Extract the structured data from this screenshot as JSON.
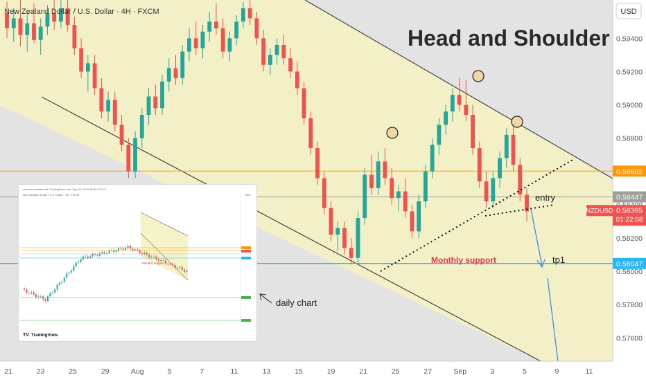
{
  "header": {
    "symbol_title": "New Zealand Dollar / U.S. Dollar · 4H · FXCM",
    "currency": "USD"
  },
  "annotations": {
    "pattern_title": "Head and Shoulder",
    "entry": "entry",
    "tp1": "tp1",
    "monthly_support": "Monthly support",
    "daily_chart": "daily chart"
  },
  "price_labels": {
    "orange_level": "0.58602",
    "gray_level": "0.58447",
    "symbol_tag": "NZDUSD",
    "last_price": "0.58365",
    "countdown": "01:22:08",
    "blue_level": "0.58047"
  },
  "colors": {
    "bull": "#26a69a",
    "bear": "#ef5350",
    "channel_fill": "#f3f0c8",
    "orange_line": "#ff9800",
    "blue_line": "#29b6f6",
    "label_red": "#e0394b"
  },
  "inset": {
    "header_text": "suluoluo created with TradingView.com, Sep 04, 2023 18:30 UTC+3",
    "symbol_text": "New Zealand Dollar / U.S. Dollar · 1D · FXCM",
    "caption": "Monthly support",
    "logo": "TradingView",
    "axis_label": "USD"
  },
  "chart_data": {
    "type": "candlestick",
    "title": "Head and Shoulder",
    "ylabel": "USD",
    "y_ticks": [
      0.594,
      0.592,
      0.59,
      0.588,
      0.586,
      0.584,
      0.582,
      0.58,
      0.578,
      0.576
    ],
    "y_tick_labels": [
      "0.59400",
      "0.59200",
      "0.59000",
      "0.58800",
      "0.58600",
      "0.58400",
      "0.58200",
      "0.58000",
      "0.57800",
      "0.57600"
    ],
    "ylim": [
      0.5746,
      0.5963
    ],
    "x_tick_labels": [
      "21",
      "23",
      "25",
      "29",
      "Aug",
      "5",
      "7",
      "11",
      "13",
      "15",
      "19",
      "21",
      "25",
      "27",
      "Sep",
      "3",
      "5",
      "9",
      "11"
    ],
    "horizontal_levels": [
      {
        "value": 0.58602,
        "color": "orange"
      },
      {
        "value": 0.58447,
        "color": "gray"
      },
      {
        "value": 0.58047,
        "color": "blue"
      }
    ],
    "last_price": 0.58365,
    "series": [
      {
        "values": [
          [
            0.5955,
            0.5962,
            0.594,
            0.5946
          ],
          [
            0.5946,
            0.5958,
            0.5938,
            0.5952
          ],
          [
            0.5952,
            0.5963,
            0.5935,
            0.5942
          ],
          [
            0.5942,
            0.5956,
            0.5932,
            0.5949
          ],
          [
            0.5949,
            0.5961,
            0.5937,
            0.5939
          ],
          [
            0.5939,
            0.5952,
            0.593,
            0.5947
          ],
          [
            0.5947,
            0.596,
            0.5942,
            0.5955
          ],
          [
            0.5955,
            0.5963,
            0.5945,
            0.595
          ],
          [
            0.595,
            0.5963,
            0.5946,
            0.5958
          ],
          [
            0.5958,
            0.5963,
            0.5944,
            0.5948
          ],
          [
            0.5948,
            0.5953,
            0.593,
            0.5934
          ],
          [
            0.5934,
            0.594,
            0.5916,
            0.592
          ],
          [
            0.592,
            0.593,
            0.5908,
            0.5925
          ],
          [
            0.5925,
            0.593,
            0.5906,
            0.591
          ],
          [
            0.591,
            0.5916,
            0.5892,
            0.5896
          ],
          [
            0.5896,
            0.5908,
            0.589,
            0.5903
          ],
          [
            0.5903,
            0.5908,
            0.5884,
            0.5888
          ],
          [
            0.5888,
            0.5894,
            0.5872,
            0.5876
          ],
          [
            0.5876,
            0.588,
            0.5856,
            0.586
          ],
          [
            0.586,
            0.5884,
            0.5856,
            0.588
          ],
          [
            0.588,
            0.5898,
            0.5874,
            0.5894
          ],
          [
            0.5894,
            0.591,
            0.5888,
            0.5905
          ],
          [
            0.5905,
            0.5912,
            0.5894,
            0.5898
          ],
          [
            0.5898,
            0.5918,
            0.5894,
            0.5914
          ],
          [
            0.5914,
            0.5928,
            0.5908,
            0.5922
          ],
          [
            0.5922,
            0.593,
            0.5912,
            0.5916
          ],
          [
            0.5916,
            0.5936,
            0.5912,
            0.5932
          ],
          [
            0.5932,
            0.5946,
            0.5926,
            0.594
          ],
          [
            0.594,
            0.595,
            0.593,
            0.5934
          ],
          [
            0.5934,
            0.5948,
            0.5928,
            0.5944
          ],
          [
            0.5944,
            0.5956,
            0.5938,
            0.595
          ],
          [
            0.595,
            0.5961,
            0.5942,
            0.5946
          ],
          [
            0.5946,
            0.5952,
            0.5928,
            0.5932
          ],
          [
            0.5932,
            0.5944,
            0.5926,
            0.594
          ],
          [
            0.594,
            0.5954,
            0.5936,
            0.595
          ],
          [
            0.595,
            0.5962,
            0.5946,
            0.5958
          ],
          [
            0.5958,
            0.5963,
            0.5948,
            0.5952
          ],
          [
            0.5952,
            0.5956,
            0.5936,
            0.594
          ],
          [
            0.594,
            0.5945,
            0.592,
            0.5924
          ],
          [
            0.5924,
            0.5934,
            0.5918,
            0.593
          ],
          [
            0.593,
            0.594,
            0.5924,
            0.5936
          ],
          [
            0.5936,
            0.5942,
            0.5924,
            0.5928
          ],
          [
            0.5928,
            0.5934,
            0.5916,
            0.592
          ],
          [
            0.592,
            0.5926,
            0.5906,
            0.591
          ],
          [
            0.591,
            0.5914,
            0.5888,
            0.5892
          ],
          [
            0.5892,
            0.5896,
            0.587,
            0.5874
          ],
          [
            0.5874,
            0.5878,
            0.5852,
            0.5856
          ],
          [
            0.5856,
            0.586,
            0.5834,
            0.5838
          ],
          [
            0.5838,
            0.5842,
            0.5818,
            0.5822
          ],
          [
            0.5822,
            0.583,
            0.5812,
            0.5826
          ],
          [
            0.5826,
            0.583,
            0.581,
            0.5814
          ],
          [
            0.5814,
            0.582,
            0.5804,
            0.5808
          ],
          [
            0.5808,
            0.5836,
            0.5804,
            0.5832
          ],
          [
            0.5832,
            0.5862,
            0.5828,
            0.5858
          ],
          [
            0.5858,
            0.587,
            0.5846,
            0.585
          ],
          [
            0.585,
            0.5872,
            0.5846,
            0.5866
          ],
          [
            0.5866,
            0.5874,
            0.5852,
            0.5856
          ],
          [
            0.5856,
            0.5862,
            0.584,
            0.5844
          ],
          [
            0.5844,
            0.5852,
            0.5836,
            0.5848
          ],
          [
            0.5848,
            0.5856,
            0.5832,
            0.5836
          ],
          [
            0.5836,
            0.584,
            0.582,
            0.5824
          ],
          [
            0.5824,
            0.5846,
            0.582,
            0.5842
          ],
          [
            0.5842,
            0.5864,
            0.5838,
            0.586
          ],
          [
            0.586,
            0.588,
            0.5856,
            0.5876
          ],
          [
            0.5876,
            0.5892,
            0.587,
            0.5888
          ],
          [
            0.5888,
            0.59,
            0.5882,
            0.5896
          ],
          [
            0.5896,
            0.591,
            0.589,
            0.5906
          ],
          [
            0.5906,
            0.5916,
            0.5896,
            0.59
          ],
          [
            0.59,
            0.5915,
            0.589,
            0.5894
          ],
          [
            0.5894,
            0.59,
            0.587,
            0.5874
          ],
          [
            0.5874,
            0.5878,
            0.585,
            0.5854
          ],
          [
            0.5854,
            0.586,
            0.5838,
            0.5842
          ],
          [
            0.5842,
            0.586,
            0.5838,
            0.5856
          ],
          [
            0.5856,
            0.5872,
            0.585,
            0.5868
          ],
          [
            0.5868,
            0.5886,
            0.5862,
            0.5882
          ],
          [
            0.5882,
            0.5888,
            0.586,
            0.5864
          ],
          [
            0.5864,
            0.5868,
            0.5842,
            0.5846
          ],
          [
            0.5846,
            0.585,
            0.583,
            0.5836
          ]
        ]
      }
    ]
  }
}
